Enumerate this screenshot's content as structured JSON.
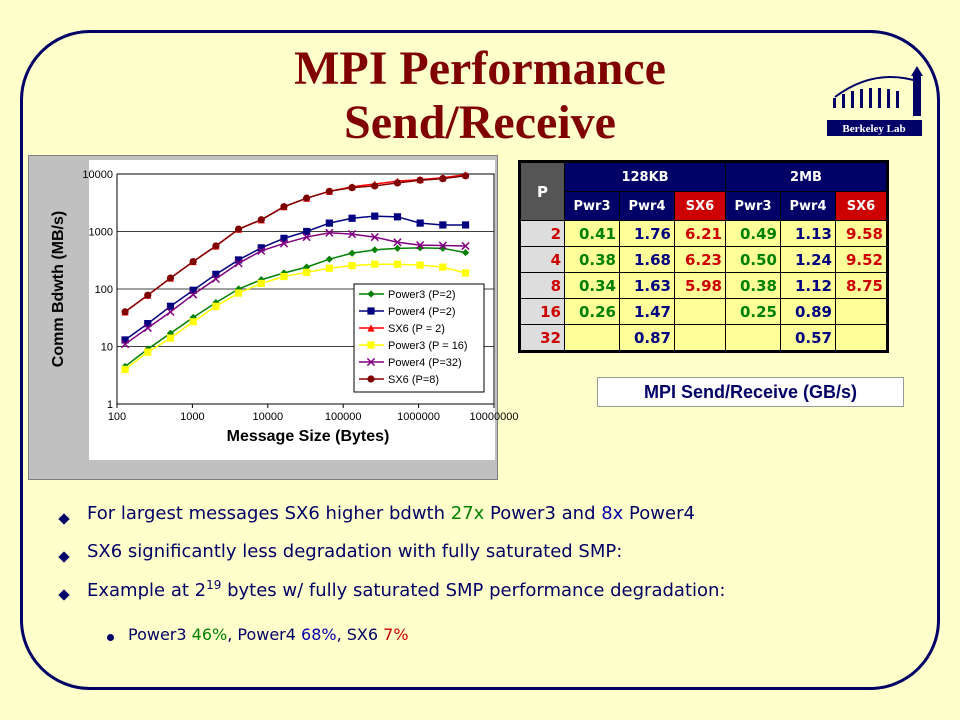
{
  "slide": {
    "title_line1": "MPI Performance",
    "title_line2": "Send/Receive"
  },
  "chart_data": {
    "type": "line",
    "xlabel": "Message Size (Bytes)",
    "ylabel": "Comm Bdwth (MB/s)",
    "xscale": "log",
    "yscale": "log",
    "xlim": [
      100,
      10000000
    ],
    "ylim": [
      1,
      10000
    ],
    "x_ticks": [
      "100",
      "1000",
      "10000",
      "100000",
      "1000000",
      "10000000"
    ],
    "y_ticks": [
      "1",
      "10",
      "100",
      "1000",
      "10000"
    ],
    "grid": "horizontal",
    "legend_position": "bottom-right",
    "x": [
      128,
      256,
      512,
      1024,
      2048,
      4096,
      8192,
      16384,
      32768,
      65536,
      131072,
      262144,
      524288,
      1048576,
      2097152,
      4194304
    ],
    "series": [
      {
        "name": "Power3 (P=2)",
        "color": "#008000",
        "marker": "diamond",
        "values": [
          4.5,
          9,
          17,
          32,
          58,
          100,
          145,
          190,
          240,
          330,
          420,
          480,
          510,
          520,
          510,
          430
        ]
      },
      {
        "name": "Power4 (P=2)",
        "color": "#000080",
        "marker": "square",
        "values": [
          13,
          25,
          50,
          95,
          180,
          320,
          520,
          760,
          1000,
          1400,
          1700,
          1850,
          1800,
          1400,
          1300,
          1300
        ]
      },
      {
        "name": "SX6 (P = 2)",
        "color": "#ff0000",
        "marker": "triangle",
        "values": [
          40,
          78,
          155,
          300,
          560,
          1100,
          1600,
          2700,
          3800,
          5000,
          6000,
          6700,
          7500,
          8000,
          8600,
          9700
        ]
      },
      {
        "name": "Power3 (P = 16)",
        "color": "#ffff00",
        "marker": "square",
        "values": [
          4,
          8,
          14,
          27,
          50,
          85,
          125,
          165,
          195,
          230,
          255,
          270,
          270,
          260,
          240,
          190
        ]
      },
      {
        "name": "Power4 (P=32)",
        "color": "#800080",
        "marker": "x",
        "values": [
          11,
          21,
          40,
          80,
          150,
          280,
          460,
          620,
          800,
          950,
          900,
          800,
          650,
          580,
          570,
          560
        ]
      },
      {
        "name": "SX6 (P=8)",
        "color": "#800000",
        "marker": "circle",
        "values": [
          40,
          78,
          155,
          300,
          560,
          1100,
          1600,
          2700,
          3800,
          5000,
          5800,
          6200,
          7000,
          7800,
          8300,
          9300
        ]
      }
    ]
  },
  "table": {
    "p_header": "P",
    "group1": "128KB",
    "group2": "2MB",
    "cols": [
      "Pwr3",
      "Pwr4",
      "SX6",
      "Pwr3",
      "Pwr4",
      "SX6"
    ],
    "rows": [
      {
        "p": "2",
        "v": [
          "0.41",
          "1.76",
          "6.21",
          "0.49",
          "1.13",
          "9.58"
        ]
      },
      {
        "p": "4",
        "v": [
          "0.38",
          "1.68",
          "6.23",
          "0.50",
          "1.24",
          "9.52"
        ]
      },
      {
        "p": "8",
        "v": [
          "0.34",
          "1.63",
          "5.98",
          "0.38",
          "1.12",
          "8.75"
        ]
      },
      {
        "p": "16",
        "v": [
          "0.26",
          "1.47",
          "",
          "0.25",
          "0.89",
          ""
        ]
      },
      {
        "p": "32",
        "v": [
          "",
          "0.87",
          "",
          "",
          "0.57",
          ""
        ]
      }
    ],
    "caption": "MPI Send/Receive (GB/s)"
  },
  "logo": {
    "text": "Berkeley Lab"
  },
  "bullets": {
    "b1": {
      "pre": "For largest messages SX6 higher bdwth ",
      "v1": "27x",
      "mid1": " Power3 and ",
      "v2": "8x",
      "post": " Power4"
    },
    "b2": "SX6 significantly less degradation with fully saturated SMP:",
    "b3": {
      "pre": "Example at 2",
      "sup": "19",
      "post": " bytes w/ fully saturated SMP performance degradation:"
    },
    "b4": {
      "p3": "Power3 ",
      "p3v": "46%",
      "sep1": ", Power4 ",
      "p4v": "68%",
      "sep2": ", SX6 ",
      "sxv": "7%"
    }
  }
}
